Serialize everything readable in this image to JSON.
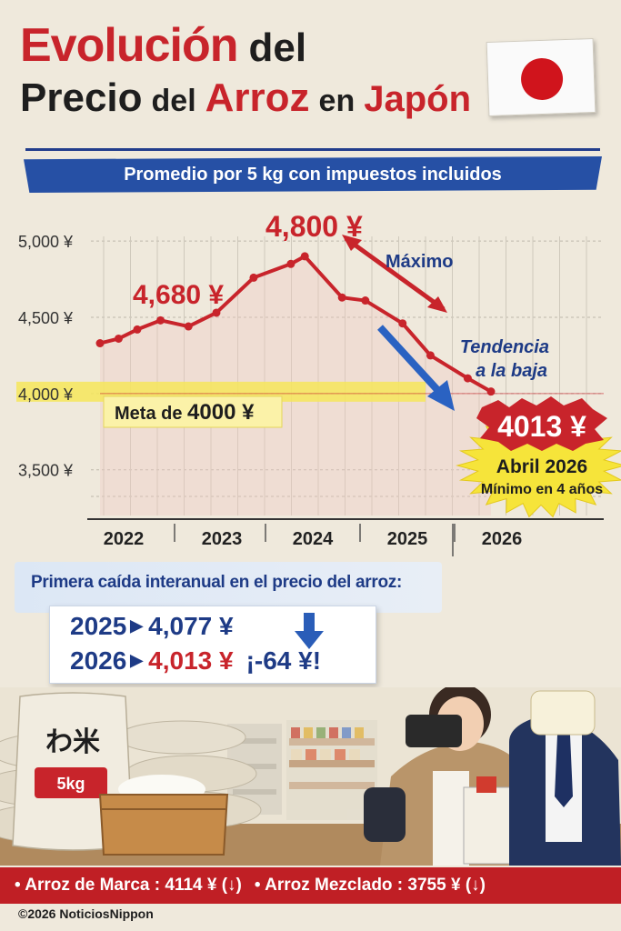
{
  "title": {
    "line1_red": "Evolución",
    "line1_dark": "del",
    "line2_a": "Precio",
    "line2_b": "del",
    "line2_c": "Arroz",
    "line2_d": "en",
    "line2_e": "Japón"
  },
  "banner": "Promedio por 5 kg con impuestos incluidos",
  "chart_data": {
    "type": "line",
    "x_unit": "year",
    "x": [
      2021.8,
      2022.0,
      2022.2,
      2022.45,
      2022.75,
      2023.05,
      2023.45,
      2023.85,
      2024.0,
      2024.4,
      2024.65,
      2025.05,
      2025.35,
      2025.75,
      2026.0
    ],
    "values": [
      4330,
      4360,
      4420,
      4480,
      4440,
      4530,
      4760,
      4850,
      4900,
      4630,
      4610,
      4460,
      4250,
      4100,
      4013
    ],
    "categories": [
      "2022",
      "2023",
      "2024",
      "2025",
      "2026"
    ],
    "y_ticks": [
      "5,000 ¥",
      "4,500 ¥",
      "4,000 ¥",
      "3,500 ¥"
    ],
    "ylim": [
      3200,
      5150
    ],
    "grid": true,
    "target_line": 4000,
    "annotations": {
      "peak_label": "4,800 ¥",
      "label_4680": "4,680 ¥",
      "maximo": "Máximo",
      "tendencia_1": "Tendencia",
      "tendencia_2": "a la baja",
      "meta_prefix": "Meta de ",
      "meta_value": "4000 ¥",
      "final_price": "4013 ¥",
      "final_date": "Abril 2026",
      "final_note": "Mínimo en 4 años"
    },
    "colors": {
      "line": "#c8242b",
      "target": "#f6e65a",
      "arrow_blue": "#2a62c2"
    }
  },
  "comparison": {
    "title": "Primera caída interanual en el precio del arroz:",
    "row1_year": "2025",
    "row1_value": "4,077 ¥",
    "row2_year": "2026",
    "row2_value": "4,013 ¥",
    "row2_delta": "¡-64 ¥!"
  },
  "scene": {
    "bag_text": "わ米",
    "bag_size": "5kg"
  },
  "footer": {
    "item1_label": "• Arroz de Marca : ",
    "item1_value": "4114 ¥ (↓)",
    "item2_label": "• Arroz Mezclado : ",
    "item2_value": "3755 ¥ (↓)",
    "copyright": "©2026 NoticiosNippon"
  }
}
